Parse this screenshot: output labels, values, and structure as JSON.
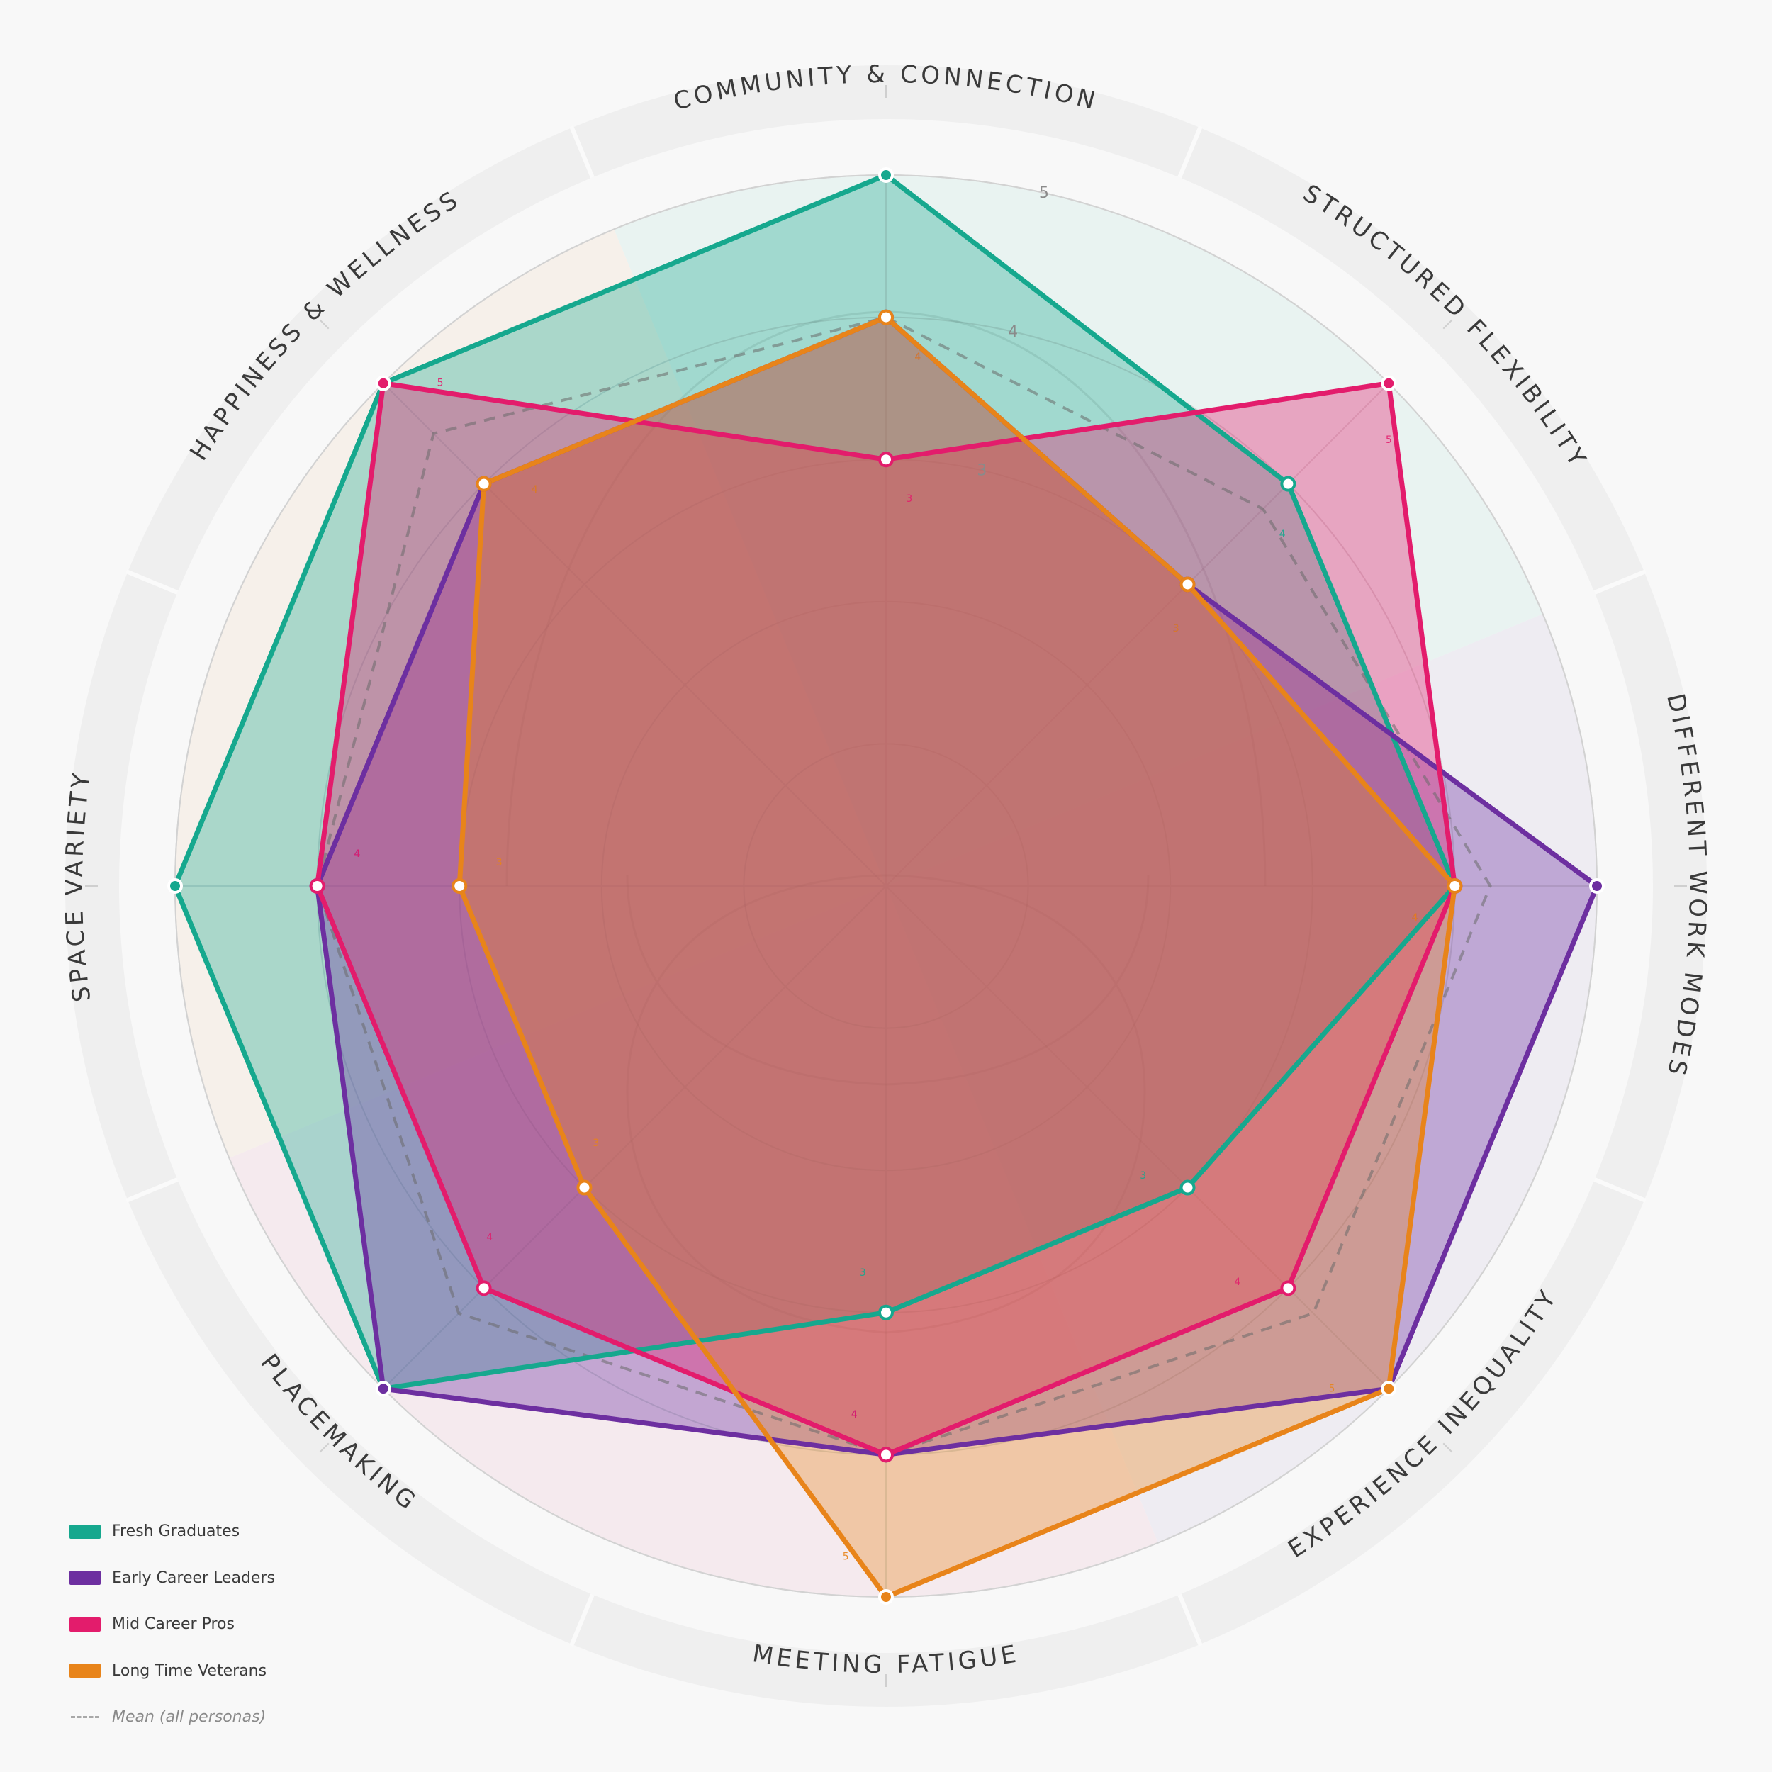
{
  "chart_data": {
    "type": "radar",
    "axes": [
      "COMMUNITY & CONNECTION",
      "STRUCTURED FLEXIBILITY",
      "DIFFERENT WORK MODES",
      "EXPERIENCE INEQUALITY",
      "MEETING FATIGUE",
      "PLACEMAKING",
      "SPACE VARIETY",
      "HAPPINESS & WELLNESS"
    ],
    "rmin": 0,
    "rmax": 5,
    "ring_labels": [
      "3",
      "4",
      "5"
    ],
    "series": [
      {
        "name": "Fresh Graduates",
        "color": "#16a88e",
        "values": [
          5,
          4,
          4,
          3,
          3,
          5,
          5,
          5
        ],
        "labels": [
          "",
          "4",
          "4",
          "3",
          "3",
          "",
          "",
          ""
        ]
      },
      {
        "name": "Early Career Leaders",
        "color": "#6d2fa0",
        "values": [
          4,
          3,
          5,
          5,
          4,
          5,
          4,
          4
        ],
        "labels": [
          "4",
          "3",
          "",
          "",
          "4",
          "",
          "4",
          "4"
        ]
      },
      {
        "name": "Mid Career Pros",
        "color": "#e31c6c",
        "values": [
          3,
          5,
          4,
          4,
          4,
          4,
          4,
          5
        ],
        "labels": [
          "3",
          "5",
          "4",
          "4",
          "4",
          "4",
          "4",
          "5"
        ]
      },
      {
        "name": "Long Time Veterans",
        "color": "#e8841a",
        "values": [
          4,
          3,
          4,
          5,
          5,
          3,
          3,
          4
        ],
        "labels": [
          "4",
          "3",
          "4",
          "5",
          "5",
          "3",
          "3",
          "4"
        ]
      }
    ],
    "mean": {
      "name": "Mean (all personas)",
      "values": [
        4,
        3.75,
        4.25,
        4.25,
        4,
        4.25,
        4,
        4.5
      ]
    },
    "legend": {
      "position": "bottom-left"
    }
  }
}
